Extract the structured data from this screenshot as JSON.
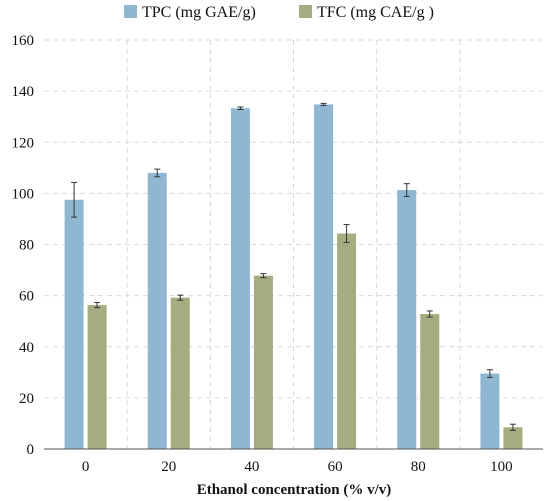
{
  "chart_data": {
    "type": "bar",
    "title": "",
    "xlabel": "Ethanol concentration (% v/v)",
    "ylabel": "",
    "ylim": [
      0,
      160
    ],
    "yticks": [
      0,
      20,
      40,
      60,
      80,
      100,
      120,
      140,
      160
    ],
    "grid": "horizontal and vertical, dashed",
    "legend_position": "top",
    "categories": [
      "0",
      "20",
      "40",
      "60",
      "80",
      "100"
    ],
    "series": [
      {
        "name": "TPC (mg GAE/g)",
        "color": "#8fb7d2",
        "values": [
          97.5,
          108,
          133.3,
          134.8,
          101.3,
          29.5
        ],
        "errors": [
          6.8,
          1.5,
          0.5,
          0.4,
          2.5,
          1.5
        ]
      },
      {
        "name": "TFC (mg CAE/g )",
        "color": "#a5ad80",
        "values": [
          56.3,
          59.2,
          67.8,
          84.3,
          52.8,
          8.5
        ],
        "errors": [
          1.0,
          1.0,
          0.8,
          3.5,
          1.2,
          1.2
        ]
      }
    ]
  }
}
